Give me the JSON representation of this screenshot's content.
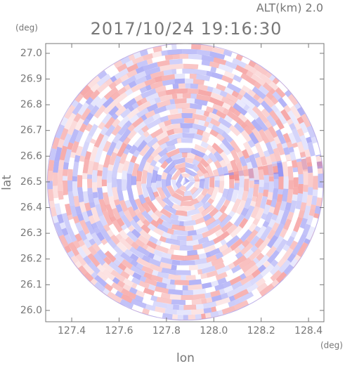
{
  "chart_data": {
    "type": "radar-ppi",
    "title": "2017/10/24 19:16:30",
    "subtitle": "ALT(km) 2.0",
    "x_label": "lon",
    "y_label": "lat",
    "x_unit": "(deg)",
    "y_unit": "(deg)",
    "xlim": [
      127.29,
      128.465
    ],
    "ylim": [
      25.956,
      27.038
    ],
    "xticks": [
      {
        "value": 127.4,
        "label": "127.4"
      },
      {
        "value": 127.6,
        "label": "127.6"
      },
      {
        "value": 127.8,
        "label": "127.8"
      },
      {
        "value": 128.0,
        "label": "128.0"
      },
      {
        "value": 128.2,
        "label": "128.2"
      },
      {
        "value": 128.4,
        "label": "128.4"
      }
    ],
    "yticks": [
      {
        "value": 26.0,
        "label": "26.0"
      },
      26.1,
      26.2,
      26.3,
      26.4,
      26.5,
      26.6,
      26.7,
      26.8,
      26.9,
      {
        "value": 27.0,
        "label": "27.0"
      }
    ],
    "range_circle": {
      "center_lon": 127.88,
      "center_lat": 26.5,
      "radius_lon": 0.583,
      "radius_lat": 0.538
    }
  }
}
